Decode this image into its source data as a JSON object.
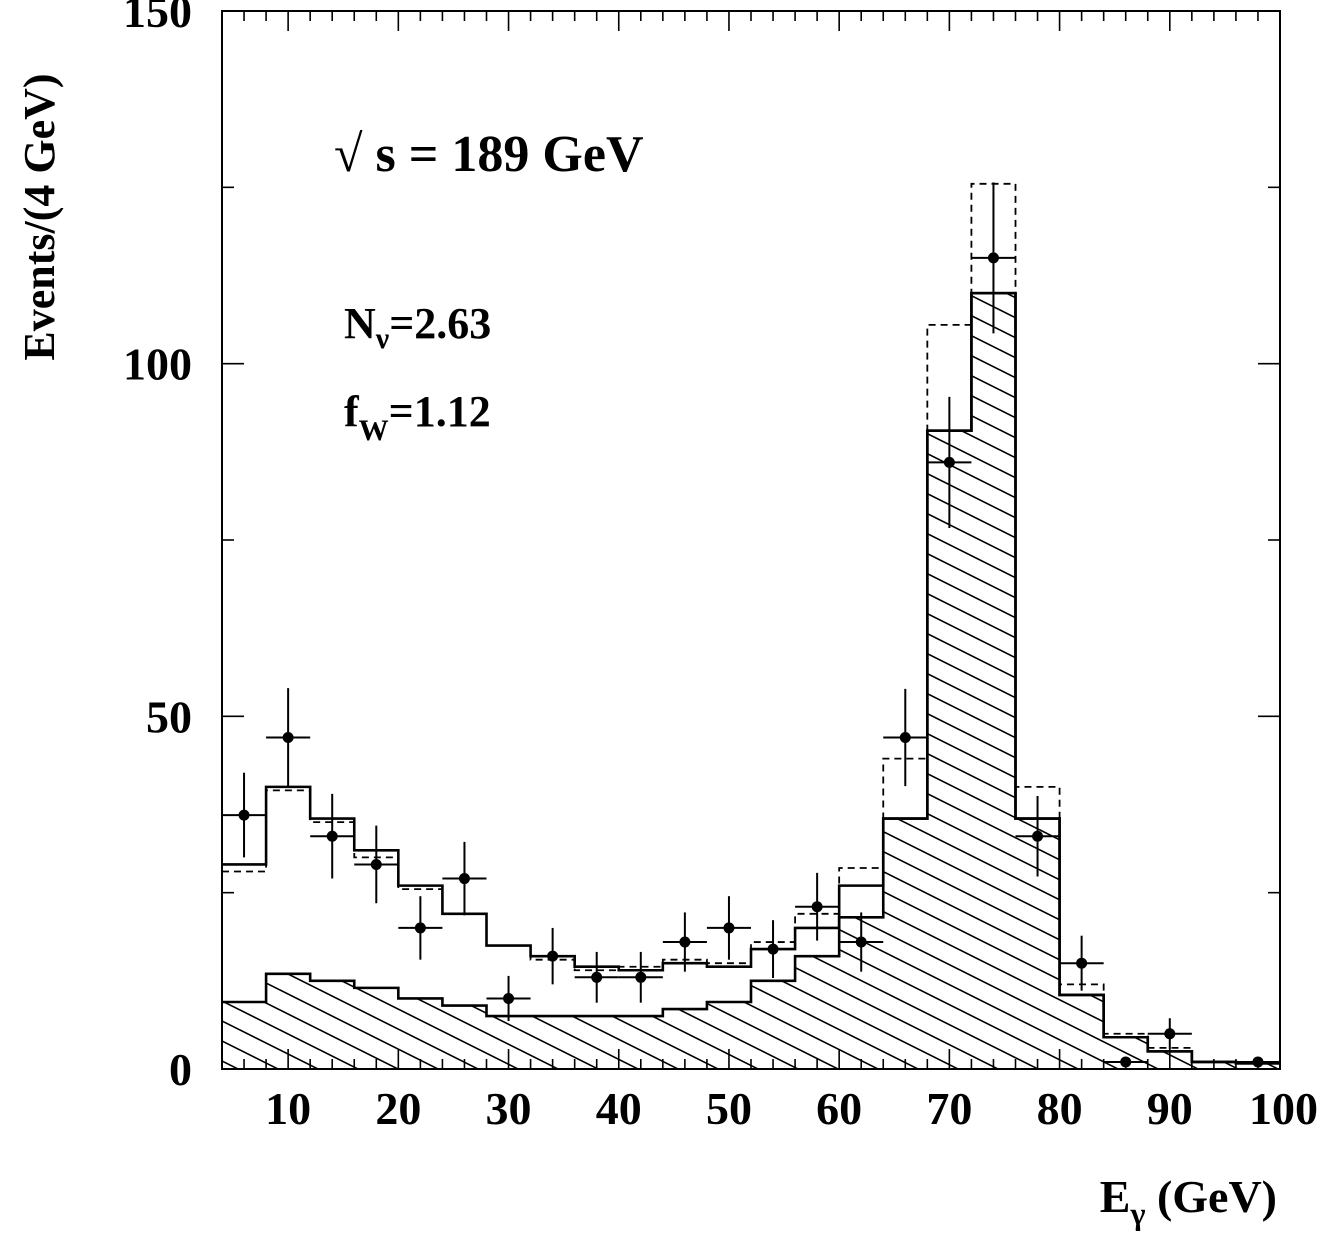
{
  "chart_data": {
    "type": "histogram",
    "ylabel": "Events/(4 GeV)",
    "xlabel": {
      "main": "E",
      "sub": "γ",
      "unit": " (GeV)"
    },
    "xlim": [
      4,
      100
    ],
    "ylim": [
      0,
      150
    ],
    "x_ticks": [
      {
        "value": 10,
        "label": "10"
      },
      {
        "value": 20,
        "label": "20"
      },
      {
        "value": 30,
        "label": "30"
      },
      {
        "value": 40,
        "label": "40"
      },
      {
        "value": 50,
        "label": "50"
      },
      {
        "value": 60,
        "label": "60"
      },
      {
        "value": 70,
        "label": "70"
      },
      {
        "value": 80,
        "label": "80"
      },
      {
        "value": 90,
        "label": "90"
      },
      {
        "value": 100,
        "label": "100"
      }
    ],
    "y_ticks": [
      {
        "value": 0,
        "label": "0"
      },
      {
        "value": 50,
        "label": "50"
      },
      {
        "value": 100,
        "label": "100"
      },
      {
        "value": 150,
        "label": "150"
      }
    ],
    "annotations": {
      "energy": {
        "sqrt": "√",
        "text": " s = 189 GeV"
      },
      "nnu": {
        "main": "N",
        "sub": "ν",
        "value": "=2.63"
      },
      "fw": {
        "main": "f",
        "sub": "W",
        "value": "=1.12"
      }
    },
    "bin_edges": [
      4,
      8,
      12,
      16,
      20,
      24,
      28,
      32,
      36,
      40,
      44,
      48,
      52,
      56,
      60,
      64,
      68,
      72,
      76,
      80,
      84,
      88,
      92,
      96,
      100
    ],
    "series": [
      {
        "kind": "total_fit",
        "style": "solid",
        "values": [
          29,
          40,
          35.5,
          31,
          26,
          22,
          17.5,
          16,
          14.5,
          14,
          15,
          14.5,
          17,
          20,
          26,
          35.5,
          90.5,
          110,
          35.5,
          10.5,
          4.5,
          2.5,
          1,
          0.8
        ]
      },
      {
        "kind": "alternative",
        "style": "dashed",
        "values": [
          28,
          39.5,
          35,
          30,
          25.5,
          22,
          17.5,
          15.5,
          14,
          14.5,
          15.5,
          15,
          18,
          22,
          28.5,
          44,
          105.5,
          125.5,
          40,
          12,
          5,
          3,
          1,
          0.8
        ]
      },
      {
        "kind": "signal",
        "style": "hatched",
        "values": [
          9.5,
          13.5,
          12.5,
          11.5,
          10,
          9,
          7.5,
          7.5,
          7.5,
          7.5,
          8.5,
          9.5,
          12.5,
          16,
          21.5,
          35.5,
          90.5,
          110,
          35.5,
          10.5,
          4.5,
          2.5,
          1,
          0.8
        ]
      }
    ],
    "data_points": [
      {
        "x": 6,
        "y": 36,
        "err": 6
      },
      {
        "x": 10,
        "y": 47,
        "err": 7
      },
      {
        "x": 14,
        "y": 33,
        "err": 6
      },
      {
        "x": 18,
        "y": 29,
        "err": 5.5
      },
      {
        "x": 22,
        "y": 20,
        "err": 4.5
      },
      {
        "x": 26,
        "y": 27,
        "err": 5.2
      },
      {
        "x": 30,
        "y": 10,
        "err": 3.2
      },
      {
        "x": 34,
        "y": 16,
        "err": 4
      },
      {
        "x": 38,
        "y": 13,
        "err": 3.6
      },
      {
        "x": 42,
        "y": 13,
        "err": 3.6
      },
      {
        "x": 46,
        "y": 18,
        "err": 4.2
      },
      {
        "x": 50,
        "y": 20,
        "err": 4.5
      },
      {
        "x": 54,
        "y": 17,
        "err": 4.1
      },
      {
        "x": 58,
        "y": 23,
        "err": 4.8
      },
      {
        "x": 62,
        "y": 18,
        "err": 4.2
      },
      {
        "x": 66,
        "y": 47,
        "err": 6.9
      },
      {
        "x": 70,
        "y": 86,
        "err": 9.3
      },
      {
        "x": 74,
        "y": 115,
        "err": 10.7
      },
      {
        "x": 78,
        "y": 33,
        "err": 5.7
      },
      {
        "x": 82,
        "y": 15,
        "err": 3.9
      },
      {
        "x": 86,
        "y": 1,
        "err": 0
      },
      {
        "x": 90,
        "y": 5,
        "err": 2.2
      },
      {
        "x": 98,
        "y": 1,
        "err": 0
      }
    ]
  }
}
